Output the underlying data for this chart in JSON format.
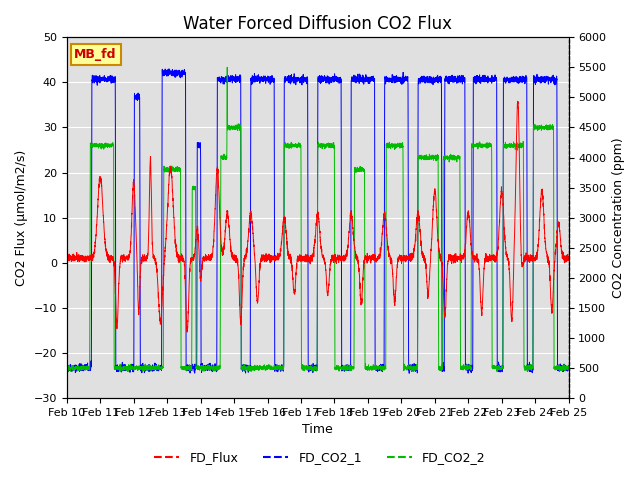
{
  "title": "Water Forced Diffusion CO2 Flux",
  "xlabel": "Time",
  "ylabel_left": "CO2 Flux (μmol/m2/s)",
  "ylabel_right": "CO2 Concentration (ppm)",
  "ylim_left": [
    -30,
    50
  ],
  "ylim_right": [
    0,
    6000
  ],
  "yticks_left": [
    -30,
    -20,
    -10,
    0,
    10,
    20,
    30,
    40,
    50
  ],
  "yticks_right": [
    0,
    500,
    1000,
    1500,
    2000,
    2500,
    3000,
    3500,
    4000,
    4500,
    5000,
    5500,
    6000
  ],
  "x_tick_labels": [
    "Feb 10",
    "Feb 11",
    "Feb 12",
    "Feb 13",
    "Feb 14",
    "Feb 15",
    "Feb 16",
    "Feb 17",
    "Feb 18",
    "Feb 19",
    "Feb 20",
    "Feb 21",
    "Feb 22",
    "Feb 23",
    "Feb 24",
    "Feb 25"
  ],
  "background_color": "#e0e0e0",
  "line_colors": {
    "FD_Flux": "#ff0000",
    "FD_CO2_1": "#0000ff",
    "FD_CO2_2": "#00bb00"
  },
  "mb_label": "MB_fd",
  "mb_label_color": "#cc0000",
  "mb_label_bg": "#ffff99",
  "mb_label_border": "#cc8800",
  "title_fontsize": 12,
  "axis_fontsize": 9,
  "tick_fontsize": 8,
  "legend_fontsize": 9
}
